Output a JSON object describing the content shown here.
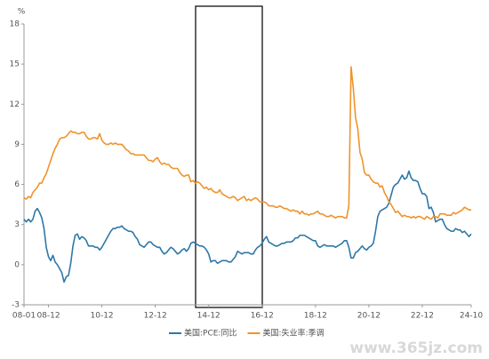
{
  "chart_data": {
    "type": "line",
    "y_label": "%",
    "watermark": "www.365jz.com",
    "categories": [
      "08-01",
      null,
      null,
      null,
      null,
      null,
      null,
      null,
      null,
      null,
      null,
      "08-12",
      null,
      null,
      null,
      null,
      null,
      null,
      null,
      null,
      null,
      null,
      null,
      null,
      null,
      null,
      null,
      null,
      null,
      null,
      null,
      null,
      null,
      null,
      null,
      "10-12",
      null,
      null,
      null,
      null,
      null,
      null,
      null,
      null,
      null,
      null,
      null,
      null,
      null,
      null,
      null,
      null,
      null,
      null,
      null,
      null,
      null,
      null,
      null,
      "12-12",
      null,
      null,
      null,
      null,
      null,
      null,
      null,
      null,
      null,
      null,
      null,
      null,
      null,
      null,
      null,
      null,
      null,
      null,
      null,
      null,
      null,
      null,
      null,
      "14-12",
      null,
      null,
      null,
      null,
      null,
      null,
      null,
      null,
      null,
      null,
      null,
      null,
      null,
      null,
      null,
      null,
      null,
      null,
      null,
      null,
      null,
      null,
      null,
      "16-12",
      null,
      null,
      null,
      null,
      null,
      null,
      null,
      null,
      null,
      null,
      null,
      null,
      null,
      null,
      null,
      null,
      null,
      null,
      null,
      null,
      null,
      null,
      null,
      "18-12",
      null,
      null,
      null,
      null,
      null,
      null,
      null,
      null,
      null,
      null,
      null,
      null,
      null,
      null,
      null,
      null,
      null,
      null,
      null,
      null,
      null,
      null,
      null,
      "20-12",
      null,
      null,
      null,
      null,
      null,
      null,
      null,
      null,
      null,
      null,
      null,
      null,
      null,
      null,
      null,
      null,
      null,
      null,
      null,
      null,
      null,
      null,
      null,
      "22-12",
      null,
      null,
      null,
      null,
      null,
      null,
      null,
      null,
      null,
      null,
      null,
      null,
      null,
      null,
      null,
      null,
      null,
      null,
      null,
      null,
      null,
      "24-10"
    ],
    "series": [
      {
        "name": "美国:PCE:同比",
        "color": "#2e78a6",
        "values": [
          3.4,
          3.2,
          3.4,
          3.2,
          3.4,
          4.0,
          4.2,
          3.9,
          3.5,
          2.7,
          1.3,
          0.6,
          0.3,
          0.7,
          0.2,
          0.0,
          -0.3,
          -0.6,
          -1.3,
          -0.9,
          -0.8,
          0.1,
          1.4,
          2.2,
          2.3,
          1.9,
          2.1,
          2.0,
          1.8,
          1.4,
          1.4,
          1.4,
          1.3,
          1.3,
          1.1,
          1.3,
          1.6,
          1.9,
          2.2,
          2.5,
          2.7,
          2.7,
          2.8,
          2.8,
          2.9,
          2.7,
          2.6,
          2.5,
          2.5,
          2.4,
          2.1,
          1.9,
          1.5,
          1.4,
          1.3,
          1.5,
          1.7,
          1.7,
          1.5,
          1.4,
          1.3,
          1.3,
          1.0,
          0.8,
          0.9,
          1.1,
          1.3,
          1.2,
          1.0,
          0.8,
          0.9,
          1.1,
          1.2,
          1.0,
          1.2,
          1.6,
          1.7,
          1.6,
          1.5,
          1.4,
          1.4,
          1.3,
          1.1,
          0.8,
          0.2,
          0.3,
          0.3,
          0.1,
          0.2,
          0.3,
          0.3,
          0.3,
          0.2,
          0.2,
          0.4,
          0.6,
          1.0,
          0.9,
          0.8,
          0.9,
          0.9,
          0.9,
          0.8,
          0.8,
          1.1,
          1.3,
          1.4,
          1.6,
          1.9,
          2.1,
          1.7,
          1.6,
          1.5,
          1.4,
          1.4,
          1.5,
          1.6,
          1.6,
          1.7,
          1.7,
          1.7,
          1.8,
          2.0,
          2.0,
          2.2,
          2.2,
          2.2,
          2.1,
          2.0,
          1.9,
          1.8,
          1.8,
          1.4,
          1.3,
          1.4,
          1.5,
          1.4,
          1.4,
          1.4,
          1.4,
          1.3,
          1.4,
          1.5,
          1.6,
          1.8,
          1.8,
          1.3,
          0.5,
          0.5,
          0.9,
          1.0,
          1.2,
          1.4,
          1.2,
          1.1,
          1.3,
          1.4,
          1.6,
          2.5,
          3.6,
          4.0,
          4.1,
          4.2,
          4.3,
          4.6,
          5.2,
          5.8,
          6.0,
          6.1,
          6.4,
          6.7,
          6.4,
          6.5,
          7.0,
          6.5,
          6.3,
          6.3,
          6.2,
          5.7,
          5.3,
          5.3,
          5.1,
          4.2,
          4.3,
          3.9,
          3.2,
          3.3,
          3.4,
          3.4,
          3.0,
          2.7,
          2.6,
          2.5,
          2.5,
          2.7,
          2.6,
          2.6,
          2.4,
          2.5,
          2.3,
          2.1,
          2.3
        ]
      },
      {
        "name": "美国:失业率:季调",
        "color": "#f0932b",
        "values": [
          5.0,
          4.9,
          5.1,
          5.0,
          5.4,
          5.6,
          5.8,
          6.1,
          6.1,
          6.5,
          6.8,
          7.3,
          7.8,
          8.3,
          8.7,
          9.0,
          9.4,
          9.5,
          9.5,
          9.6,
          9.8,
          10.0,
          9.9,
          9.9,
          9.8,
          9.8,
          9.9,
          9.9,
          9.6,
          9.4,
          9.4,
          9.5,
          9.5,
          9.4,
          9.8,
          9.3,
          9.1,
          9.0,
          9.0,
          9.1,
          9.0,
          9.1,
          9.0,
          9.0,
          9.0,
          8.8,
          8.6,
          8.5,
          8.3,
          8.3,
          8.2,
          8.2,
          8.2,
          8.2,
          8.2,
          8.0,
          7.8,
          7.8,
          7.7,
          7.9,
          8.0,
          7.7,
          7.5,
          7.6,
          7.5,
          7.5,
          7.3,
          7.2,
          7.2,
          7.2,
          6.9,
          6.7,
          6.6,
          6.7,
          6.7,
          6.2,
          6.3,
          6.1,
          6.2,
          6.1,
          5.9,
          5.7,
          5.8,
          5.6,
          5.7,
          5.5,
          5.4,
          5.4,
          5.6,
          5.3,
          5.2,
          5.1,
          5.0,
          5.0,
          5.1,
          5.0,
          4.8,
          4.9,
          5.0,
          5.1,
          4.8,
          4.9,
          4.8,
          4.9,
          5.0,
          4.9,
          4.7,
          4.7,
          4.7,
          4.6,
          4.4,
          4.4,
          4.4,
          4.3,
          4.3,
          4.4,
          4.3,
          4.2,
          4.2,
          4.1,
          4.0,
          4.1,
          4.0,
          4.0,
          3.8,
          4.0,
          3.8,
          3.8,
          3.7,
          3.8,
          3.8,
          3.9,
          4.0,
          3.8,
          3.8,
          3.7,
          3.6,
          3.6,
          3.7,
          3.6,
          3.5,
          3.6,
          3.6,
          3.6,
          3.5,
          3.5,
          4.4,
          14.8,
          13.2,
          11.0,
          10.2,
          8.4,
          7.9,
          6.9,
          6.7,
          6.7,
          6.4,
          6.2,
          6.1,
          6.1,
          5.8,
          5.9,
          5.4,
          5.1,
          4.7,
          4.5,
          4.2,
          3.9,
          4.0,
          3.8,
          3.6,
          3.7,
          3.6,
          3.6,
          3.5,
          3.6,
          3.5,
          3.6,
          3.6,
          3.5,
          3.4,
          3.6,
          3.5,
          3.4,
          3.6,
          3.6,
          3.5,
          3.8,
          3.8,
          3.8,
          3.7,
          3.7,
          3.7,
          3.9,
          3.8,
          3.9,
          4.0,
          4.1,
          4.3,
          4.2,
          4.1,
          4.1
        ]
      }
    ],
    "ylim": [
      -3,
      18
    ],
    "yticks": [
      -3,
      0,
      3,
      6,
      9,
      12,
      15,
      18
    ],
    "legend": "bottom"
  }
}
